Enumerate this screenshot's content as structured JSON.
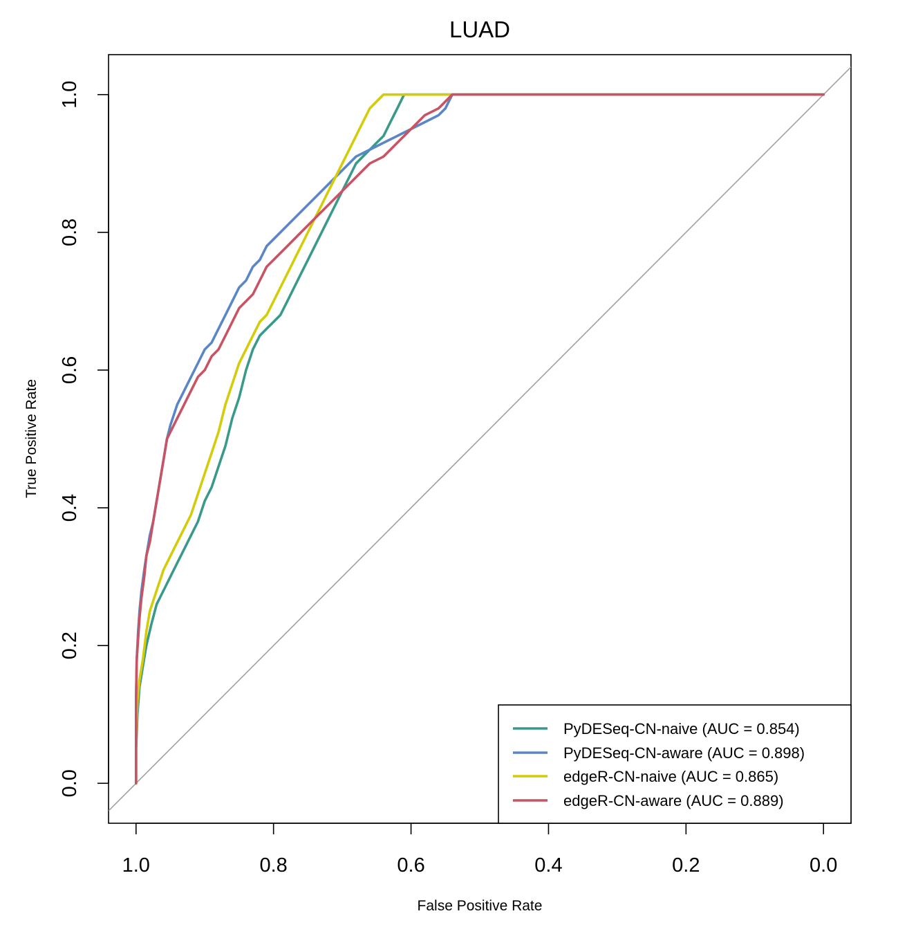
{
  "chart_data": {
    "type": "line",
    "title": "LUAD",
    "xlabel": "False Positive Rate",
    "ylabel": "True Positive Rate",
    "xlim": [
      1.04,
      -0.04
    ],
    "ylim": [
      -0.058,
      1.058
    ],
    "x_reversed": true,
    "x_ticks": [
      1.0,
      0.8,
      0.6,
      0.4,
      0.2,
      0.0
    ],
    "x_tick_labels": [
      "1.0",
      "0.8",
      "0.6",
      "0.4",
      "0.2",
      "0.0"
    ],
    "y_ticks": [
      0.0,
      0.2,
      0.4,
      0.6,
      0.8,
      1.0
    ],
    "y_tick_labels": [
      "0.0",
      "0.2",
      "0.4",
      "0.6",
      "0.8",
      "1.0"
    ],
    "grid": false,
    "legend_position": "bottom-right",
    "reference_line": {
      "from": [
        1.0,
        0.0
      ],
      "to": [
        0.0,
        1.0
      ],
      "color": "#a0a0a0"
    },
    "series": [
      {
        "name": "PyDESeq-CN-naive (AUC = 0.854)",
        "color": "#3a9a8a",
        "x": [
          1.0,
          1.0,
          0.998,
          0.995,
          0.99,
          0.985,
          0.978,
          0.97,
          0.96,
          0.95,
          0.94,
          0.93,
          0.92,
          0.91,
          0.9,
          0.89,
          0.88,
          0.87,
          0.86,
          0.85,
          0.84,
          0.83,
          0.82,
          0.81,
          0.8,
          0.79,
          0.78,
          0.77,
          0.76,
          0.75,
          0.74,
          0.73,
          0.72,
          0.71,
          0.7,
          0.69,
          0.68,
          0.67,
          0.66,
          0.65,
          0.64,
          0.63,
          0.62,
          0.61,
          0.0
        ],
        "y": [
          0.0,
          0.05,
          0.1,
          0.14,
          0.17,
          0.2,
          0.23,
          0.26,
          0.28,
          0.3,
          0.32,
          0.34,
          0.36,
          0.38,
          0.41,
          0.43,
          0.46,
          0.49,
          0.53,
          0.56,
          0.6,
          0.63,
          0.65,
          0.66,
          0.67,
          0.68,
          0.7,
          0.72,
          0.74,
          0.76,
          0.78,
          0.8,
          0.82,
          0.84,
          0.86,
          0.88,
          0.9,
          0.91,
          0.92,
          0.93,
          0.94,
          0.96,
          0.98,
          1.0,
          1.0
        ]
      },
      {
        "name": "PyDESeq-CN-aware (AUC = 0.898)",
        "color": "#5b86c6",
        "x": [
          1.0,
          1.0,
          0.999,
          0.997,
          0.995,
          0.992,
          0.988,
          0.985,
          0.98,
          0.975,
          0.97,
          0.965,
          0.96,
          0.955,
          0.95,
          0.94,
          0.93,
          0.92,
          0.91,
          0.9,
          0.89,
          0.88,
          0.87,
          0.86,
          0.85,
          0.84,
          0.83,
          0.82,
          0.81,
          0.8,
          0.78,
          0.76,
          0.74,
          0.72,
          0.7,
          0.68,
          0.66,
          0.64,
          0.62,
          0.6,
          0.58,
          0.56,
          0.55,
          0.54,
          0.0
        ],
        "y": [
          0.0,
          0.12,
          0.18,
          0.22,
          0.25,
          0.28,
          0.31,
          0.33,
          0.36,
          0.38,
          0.41,
          0.44,
          0.47,
          0.5,
          0.52,
          0.55,
          0.57,
          0.59,
          0.61,
          0.63,
          0.64,
          0.66,
          0.68,
          0.7,
          0.72,
          0.73,
          0.75,
          0.76,
          0.78,
          0.79,
          0.81,
          0.83,
          0.85,
          0.87,
          0.89,
          0.91,
          0.92,
          0.93,
          0.94,
          0.95,
          0.96,
          0.97,
          0.98,
          1.0,
          1.0
        ]
      },
      {
        "name": "edgeR-CN-naive (AUC = 0.865)",
        "color": "#d4cc0a",
        "x": [
          1.0,
          1.0,
          0.998,
          0.995,
          0.99,
          0.985,
          0.98,
          0.97,
          0.96,
          0.95,
          0.94,
          0.93,
          0.92,
          0.91,
          0.9,
          0.89,
          0.88,
          0.87,
          0.86,
          0.85,
          0.84,
          0.83,
          0.82,
          0.81,
          0.8,
          0.79,
          0.78,
          0.77,
          0.76,
          0.75,
          0.74,
          0.73,
          0.72,
          0.71,
          0.7,
          0.69,
          0.68,
          0.67,
          0.66,
          0.65,
          0.645,
          0.64,
          0.0
        ],
        "y": [
          0.0,
          0.07,
          0.12,
          0.15,
          0.18,
          0.22,
          0.25,
          0.28,
          0.31,
          0.33,
          0.35,
          0.37,
          0.39,
          0.42,
          0.45,
          0.48,
          0.51,
          0.55,
          0.58,
          0.61,
          0.63,
          0.65,
          0.67,
          0.68,
          0.7,
          0.72,
          0.74,
          0.76,
          0.78,
          0.8,
          0.82,
          0.84,
          0.86,
          0.88,
          0.9,
          0.92,
          0.94,
          0.96,
          0.98,
          0.99,
          0.995,
          1.0,
          1.0
        ]
      },
      {
        "name": "edgeR-CN-aware (AUC = 0.889)",
        "color": "#c65464",
        "x": [
          1.0,
          1.0,
          0.999,
          0.997,
          0.995,
          0.992,
          0.988,
          0.985,
          0.98,
          0.975,
          0.97,
          0.965,
          0.96,
          0.955,
          0.95,
          0.94,
          0.93,
          0.92,
          0.91,
          0.9,
          0.89,
          0.88,
          0.87,
          0.86,
          0.85,
          0.84,
          0.83,
          0.82,
          0.81,
          0.8,
          0.78,
          0.76,
          0.74,
          0.72,
          0.7,
          0.68,
          0.66,
          0.64,
          0.62,
          0.6,
          0.58,
          0.56,
          0.55,
          0.54,
          0.0
        ],
        "y": [
          0.0,
          0.12,
          0.18,
          0.21,
          0.24,
          0.27,
          0.3,
          0.33,
          0.35,
          0.38,
          0.41,
          0.44,
          0.47,
          0.5,
          0.51,
          0.53,
          0.55,
          0.57,
          0.59,
          0.6,
          0.62,
          0.63,
          0.65,
          0.67,
          0.69,
          0.7,
          0.71,
          0.73,
          0.75,
          0.76,
          0.78,
          0.8,
          0.82,
          0.84,
          0.86,
          0.88,
          0.9,
          0.91,
          0.93,
          0.95,
          0.97,
          0.98,
          0.99,
          1.0,
          1.0
        ]
      }
    ]
  }
}
